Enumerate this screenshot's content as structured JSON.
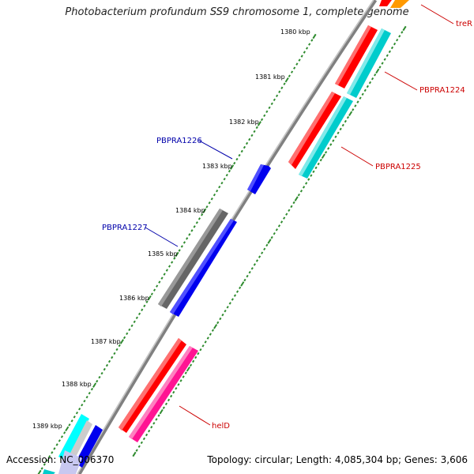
{
  "title": "Photobacterium profundum SS9 chromosome 1, complete genome",
  "footer": {
    "accession": "Accession: NC_006370",
    "summary": "Topology: circular; Length: 4,085,304 bp; Genes: 3,606"
  },
  "scale_labels": [
    "1380 kbp",
    "1381 kbp",
    "1382 kbp",
    "1383 kbp",
    "1384 kbp",
    "1385 kbp",
    "1386 kbp",
    "1387 kbp",
    "1388 kbp",
    "1389 kbp"
  ],
  "gene_labels": [
    {
      "text": "treR",
      "color": "#cc0000"
    },
    {
      "text": "PBPRA1224",
      "color": "#cc0000"
    },
    {
      "text": "PBPRA1225",
      "color": "#cc0000"
    },
    {
      "text": "PBPRA1226",
      "color": "#0000aa"
    },
    {
      "text": "PBPRA1227",
      "color": "#0000aa"
    },
    {
      "text": "helD",
      "color": "#cc0000"
    }
  ],
  "colors": {
    "backbone": "#808080",
    "ticks": "#2e8b2e",
    "red_gene": "#ff0000",
    "cyan_gene": "#00cccc",
    "blue_gene": "#0000ee",
    "gray_gene": "#666666",
    "pink_gene": "#ff1493",
    "orange_gene": "#ff9900"
  }
}
